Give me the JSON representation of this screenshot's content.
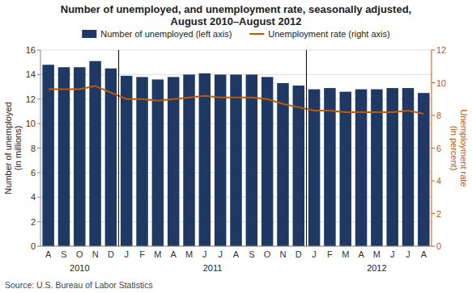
{
  "chart_data": {
    "type": "bar",
    "title": "Number of unemployed, and unemployment rate, seasonally adjusted,\nAugust 2010–August 2012",
    "categories": [
      "A",
      "S",
      "O",
      "N",
      "D",
      "J",
      "F",
      "M",
      "A",
      "M",
      "J",
      "J",
      "A",
      "S",
      "O",
      "N",
      "D",
      "J",
      "F",
      "M",
      "A",
      "M",
      "J",
      "J",
      "A"
    ],
    "series": [
      {
        "name": "Number of unemployed (left axis)",
        "type": "bar",
        "color": "#1F3864",
        "values": [
          14.8,
          14.6,
          14.6,
          15.1,
          14.5,
          13.9,
          13.8,
          13.6,
          13.8,
          14.0,
          14.1,
          14.0,
          14.0,
          14.0,
          13.8,
          13.3,
          13.1,
          12.8,
          12.9,
          12.6,
          12.8,
          12.8,
          12.9,
          12.9,
          12.5
        ]
      },
      {
        "name": "Unemployment rate (right axis)",
        "type": "line",
        "axis": "y2",
        "color": "#C05A00",
        "values": [
          9.6,
          9.6,
          9.6,
          9.8,
          9.4,
          9.0,
          9.0,
          8.9,
          9.0,
          9.1,
          9.2,
          9.1,
          9.1,
          9.1,
          9.0,
          8.7,
          8.5,
          8.3,
          8.3,
          8.2,
          8.2,
          8.2,
          8.2,
          8.3,
          8.1
        ]
      }
    ],
    "ylim": [
      0,
      16
    ],
    "yticks": [
      0,
      2,
      4,
      6,
      8,
      10,
      12,
      14,
      16
    ],
    "y2lim": [
      0,
      12
    ],
    "y2ticks": [
      0,
      2,
      4,
      6,
      8,
      10,
      12
    ],
    "ylabel": "Number of unemployed\n(in millions)",
    "y2label": "Unemployment rate\n(in percent)",
    "annotations": [
      {
        "text": "2010",
        "x": 2.0
      },
      {
        "text": "2011",
        "x": 10.5
      },
      {
        "text": "2012",
        "x": 21.0
      }
    ],
    "vlines": [
      4.5,
      16.5
    ],
    "source": "Source: U.S. Bureau of Labor Statistics",
    "grid": true,
    "legend": "top"
  }
}
